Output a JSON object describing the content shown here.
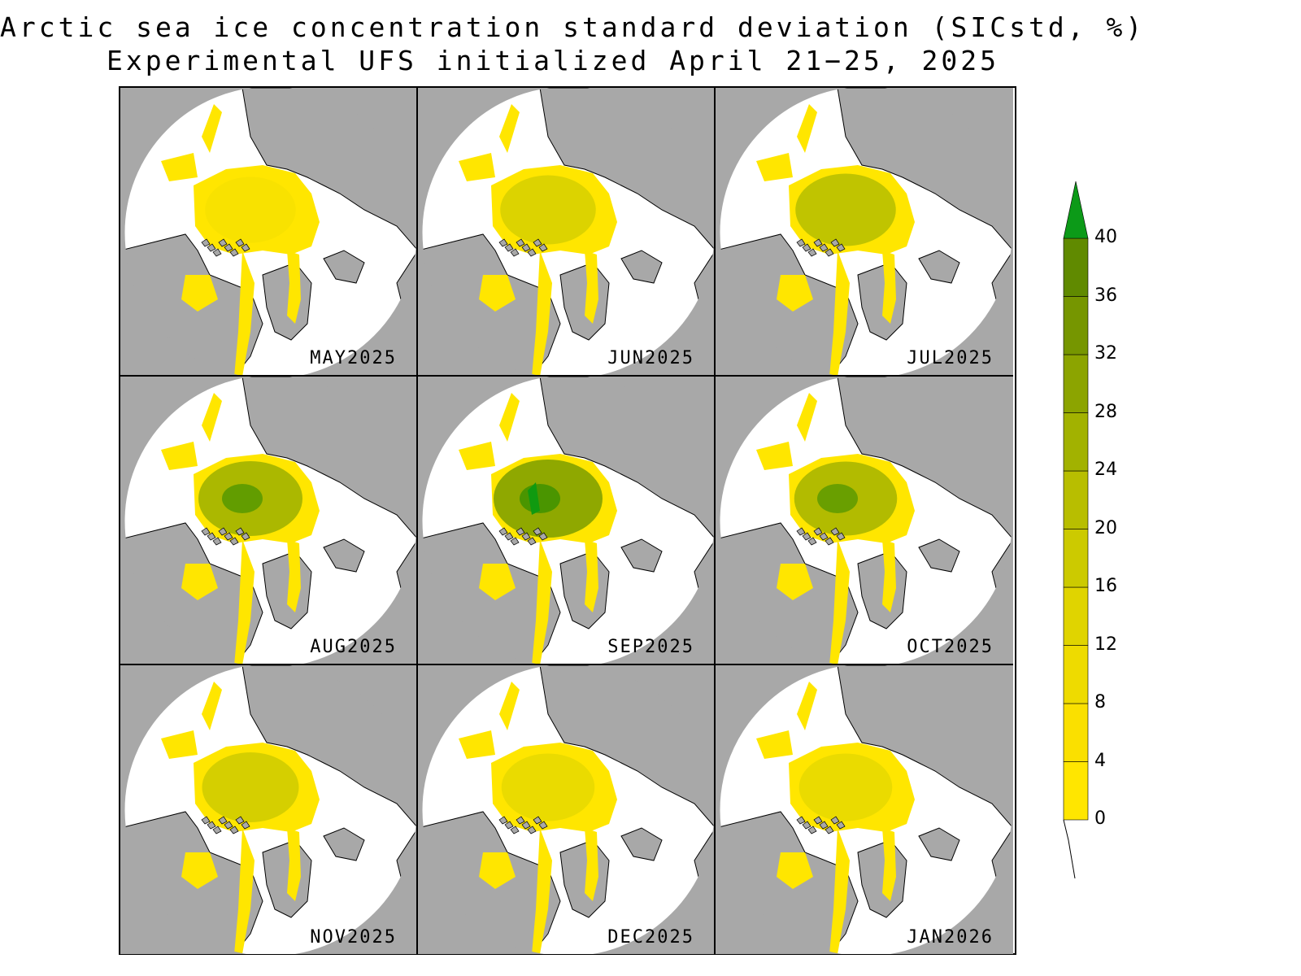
{
  "title": {
    "line1": "Arctic sea ice concentration standard deviation (SICstd, %)",
    "line2": "Experimental UFS initialized April 21−25, 2025"
  },
  "panels": [
    {
      "label": "MAY2025",
      "intensity": 0.05
    },
    {
      "label": "JUN2025",
      "intensity": 0.25
    },
    {
      "label": "JUL2025",
      "intensity": 0.45
    },
    {
      "label": "AUG2025",
      "intensity": 0.6
    },
    {
      "label": "SEP2025",
      "intensity": 0.8
    },
    {
      "label": "OCT2025",
      "intensity": 0.55
    },
    {
      "label": "NOV2025",
      "intensity": 0.3
    },
    {
      "label": "DEC2025",
      "intensity": 0.15
    },
    {
      "label": "JAN2026",
      "intensity": 0.15
    }
  ],
  "colorbar": {
    "ticks": [
      "0",
      "4",
      "8",
      "12",
      "16",
      "20",
      "24",
      "28",
      "32",
      "36",
      "40"
    ],
    "colors": [
      "#ffe600",
      "#fae000",
      "#eedb00",
      "#e0d400",
      "#ccca00",
      "#b8be00",
      "#a2b200",
      "#8ca400",
      "#769600",
      "#608a00",
      "#109a10"
    ],
    "extend_color": "#0c9a18"
  },
  "colors": {
    "land": "#a8a8a8",
    "ice_base": "#ffe600",
    "ocean": "#ffffff"
  }
}
